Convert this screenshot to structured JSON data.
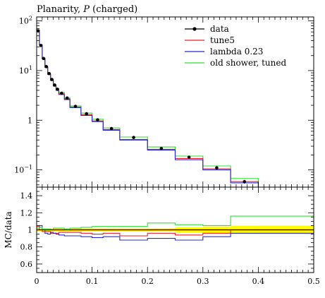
{
  "chart_data": [
    {
      "type": "line",
      "panel": "main",
      "title": "Planarity, P (charged)",
      "title_prefix": "Planarity, ",
      "title_symbol": "P",
      "title_suffix": " (charged)",
      "yscale": "log",
      "xlim": [
        0,
        0.5
      ],
      "ylim": [
        0.045,
        120
      ],
      "yticks": [
        0.1,
        1,
        10,
        100
      ],
      "ytick_labels": [
        {
          "mant": "10",
          "exp": "−1"
        },
        {
          "mant": "1",
          "exp": ""
        },
        {
          "mant": "10",
          "exp": "1"
        },
        {
          "mant": "10",
          "exp": "2"
        }
      ],
      "legend_position": "top-right",
      "bin_edges": [
        0,
        0.005,
        0.01,
        0.015,
        0.02,
        0.025,
        0.03,
        0.035,
        0.04,
        0.05,
        0.06,
        0.08,
        0.1,
        0.12,
        0.15,
        0.2,
        0.25,
        0.3,
        0.35,
        0.4
      ],
      "data": {
        "name": "data",
        "x": [
          0.0025,
          0.0075,
          0.0125,
          0.0175,
          0.0225,
          0.0275,
          0.0325,
          0.0375,
          0.045,
          0.055,
          0.07,
          0.09,
          0.11,
          0.135,
          0.175,
          0.225,
          0.275,
          0.325,
          0.375
        ],
        "y": [
          63,
          32,
          17.5,
          12,
          8.7,
          6.6,
          5.1,
          4.2,
          3.5,
          2.8,
          1.9,
          1.35,
          1.02,
          0.68,
          0.45,
          0.27,
          0.18,
          0.11,
          0.058
        ],
        "yerr": [
          3,
          1.2,
          0.6,
          0.4,
          0.3,
          0.25,
          0.2,
          0.15,
          0.12,
          0.1,
          0.07,
          0.05,
          0.04,
          0.03,
          0.02,
          0.015,
          0.01,
          0.008,
          0.005
        ],
        "color": "#000000"
      },
      "series": [
        {
          "name": "tune5",
          "color": "#e8202a",
          "values": [
            66,
            33,
            17.2,
            11.8,
            8.5,
            6.3,
            4.9,
            4.0,
            3.4,
            2.7,
            1.85,
            1.3,
            0.97,
            0.65,
            0.41,
            0.26,
            0.17,
            0.105,
            0.058
          ]
        },
        {
          "name": "lambda 0.23",
          "color": "#2a2ad6",
          "values": [
            63,
            33,
            17.5,
            11.5,
            8.3,
            6.4,
            4.9,
            4.0,
            3.3,
            2.6,
            1.8,
            1.25,
            0.94,
            0.63,
            0.4,
            0.25,
            0.16,
            0.1,
            0.055
          ]
        },
        {
          "name": "old shower, tuned",
          "color": "#33dd33",
          "values": [
            64,
            33,
            17.8,
            12.2,
            8.8,
            6.6,
            5.2,
            4.3,
            3.6,
            2.8,
            1.95,
            1.4,
            1.05,
            0.7,
            0.46,
            0.29,
            0.19,
            0.12,
            0.067
          ]
        }
      ]
    },
    {
      "type": "line",
      "panel": "ratio",
      "ylabel": "MC/data",
      "xlim": [
        0,
        0.5
      ],
      "ylim": [
        0.5,
        1.5
      ],
      "yticks": [
        0.6,
        0.8,
        1,
        1.2,
        1.4
      ],
      "ytick_labels": [
        "0.6",
        "0.8",
        "1",
        "1.2",
        "1.4"
      ],
      "xticks": [
        0,
        0.1,
        0.2,
        0.3,
        0.4,
        0.5
      ],
      "xtick_labels": [
        "0",
        "0.1",
        "0.2",
        "0.3",
        "0.4",
        "0.5"
      ],
      "bin_edges": [
        0,
        0.005,
        0.01,
        0.015,
        0.02,
        0.025,
        0.03,
        0.035,
        0.04,
        0.05,
        0.06,
        0.08,
        0.1,
        0.12,
        0.15,
        0.2,
        0.25,
        0.3,
        0.35,
        0.4
      ],
      "band": {
        "color": "#ffff00",
        "inner_color": "#f2c100",
        "upper": [
          1.02,
          1.02,
          1.02,
          1.02,
          1.02,
          1.02,
          1.02,
          1.02,
          1.02,
          1.02,
          1.02,
          1.02,
          1.02,
          1.02,
          1.02,
          1.02,
          1.03,
          1.04,
          1.05
        ],
        "lower": [
          0.98,
          0.98,
          0.98,
          0.98,
          0.98,
          0.98,
          0.98,
          0.98,
          0.98,
          0.98,
          0.98,
          0.98,
          0.98,
          0.98,
          0.98,
          0.98,
          0.97,
          0.96,
          0.95
        ]
      },
      "series": [
        {
          "name": "tune5",
          "color": "#e8202a",
          "values": [
            1.04,
            1.03,
            0.98,
            0.98,
            0.98,
            0.96,
            0.96,
            0.96,
            0.97,
            0.97,
            0.97,
            0.96,
            0.95,
            0.96,
            0.93,
            0.96,
            0.94,
            0.96,
            1.0
          ]
        },
        {
          "name": "lambda 0.23",
          "color": "#2a2ad6",
          "values": [
            1.0,
            1.05,
            1.0,
            0.96,
            0.95,
            0.97,
            0.96,
            0.95,
            0.94,
            0.93,
            0.93,
            0.92,
            0.91,
            0.92,
            0.88,
            0.9,
            0.88,
            0.92,
            0.96
          ]
        },
        {
          "name": "old shower, tuned",
          "color": "#33dd33",
          "values": [
            1.02,
            1.03,
            1.01,
            1.01,
            1.01,
            1.0,
            1.02,
            1.02,
            1.02,
            1.01,
            1.02,
            1.03,
            1.04,
            1.04,
            1.04,
            1.08,
            1.06,
            1.05,
            1.16
          ]
        },
        {
          "name": "data",
          "color": "#000000",
          "values": [
            1,
            1,
            1,
            1,
            1,
            1,
            1,
            1,
            1,
            1,
            1,
            1,
            1,
            1,
            1,
            1,
            1,
            1,
            1
          ]
        }
      ]
    }
  ]
}
